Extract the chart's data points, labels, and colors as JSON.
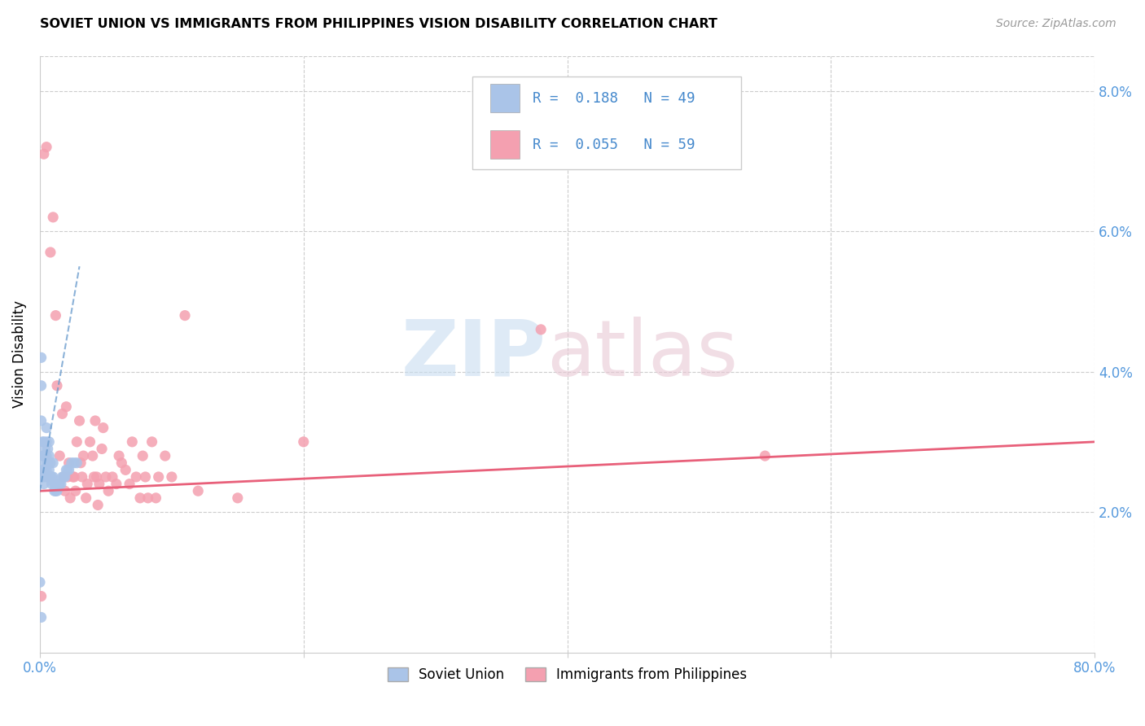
{
  "title": "SOVIET UNION VS IMMIGRANTS FROM PHILIPPINES VISION DISABILITY CORRELATION CHART",
  "source": "Source: ZipAtlas.com",
  "ylabel": "Vision Disability",
  "r_soviet": 0.188,
  "n_soviet": 49,
  "r_phil": 0.055,
  "n_phil": 59,
  "xlim": [
    0,
    0.8
  ],
  "ylim": [
    0,
    0.085
  ],
  "yticks": [
    0.0,
    0.02,
    0.04,
    0.06,
    0.08
  ],
  "xticks": [
    0.0,
    0.2,
    0.4,
    0.6,
    0.8
  ],
  "color_soviet": "#aac4e8",
  "color_phil": "#f4a0b0",
  "trendline_soviet_color": "#6699cc",
  "trendline_phil_color": "#e8607a",
  "soviet_x": [
    0.001,
    0.001,
    0.001,
    0.002,
    0.002,
    0.002,
    0.002,
    0.003,
    0.003,
    0.003,
    0.003,
    0.004,
    0.004,
    0.004,
    0.005,
    0.005,
    0.005,
    0.005,
    0.006,
    0.006,
    0.006,
    0.007,
    0.007,
    0.007,
    0.008,
    0.008,
    0.009,
    0.009,
    0.01,
    0.01,
    0.011,
    0.011,
    0.012,
    0.012,
    0.013,
    0.014,
    0.015,
    0.016,
    0.017,
    0.018,
    0.019,
    0.02,
    0.021,
    0.022,
    0.024,
    0.026,
    0.028,
    0.0,
    0.001
  ],
  "soviet_y": [
    0.042,
    0.038,
    0.033,
    0.03,
    0.028,
    0.026,
    0.025,
    0.03,
    0.028,
    0.026,
    0.024,
    0.029,
    0.027,
    0.025,
    0.032,
    0.03,
    0.028,
    0.026,
    0.029,
    0.027,
    0.025,
    0.03,
    0.028,
    0.026,
    0.027,
    0.025,
    0.025,
    0.024,
    0.027,
    0.025,
    0.024,
    0.023,
    0.024,
    0.023,
    0.023,
    0.024,
    0.024,
    0.024,
    0.025,
    0.025,
    0.025,
    0.026,
    0.026,
    0.026,
    0.027,
    0.027,
    0.027,
    0.01,
    0.005
  ],
  "phil_x": [
    0.003,
    0.005,
    0.008,
    0.01,
    0.012,
    0.013,
    0.015,
    0.017,
    0.018,
    0.019,
    0.02,
    0.021,
    0.022,
    0.023,
    0.025,
    0.026,
    0.027,
    0.028,
    0.03,
    0.031,
    0.032,
    0.033,
    0.035,
    0.036,
    0.038,
    0.04,
    0.041,
    0.042,
    0.043,
    0.044,
    0.045,
    0.047,
    0.048,
    0.05,
    0.052,
    0.055,
    0.058,
    0.06,
    0.062,
    0.065,
    0.068,
    0.07,
    0.073,
    0.076,
    0.078,
    0.08,
    0.082,
    0.085,
    0.088,
    0.09,
    0.095,
    0.1,
    0.11,
    0.12,
    0.15,
    0.2,
    0.38,
    0.55,
    0.001
  ],
  "phil_y": [
    0.071,
    0.072,
    0.057,
    0.062,
    0.048,
    0.038,
    0.028,
    0.034,
    0.025,
    0.023,
    0.035,
    0.025,
    0.027,
    0.022,
    0.025,
    0.025,
    0.023,
    0.03,
    0.033,
    0.027,
    0.025,
    0.028,
    0.022,
    0.024,
    0.03,
    0.028,
    0.025,
    0.033,
    0.025,
    0.021,
    0.024,
    0.029,
    0.032,
    0.025,
    0.023,
    0.025,
    0.024,
    0.028,
    0.027,
    0.026,
    0.024,
    0.03,
    0.025,
    0.022,
    0.028,
    0.025,
    0.022,
    0.03,
    0.022,
    0.025,
    0.028,
    0.025,
    0.048,
    0.023,
    0.022,
    0.03,
    0.046,
    0.028,
    0.008
  ],
  "soviet_trend_x": [
    0.0,
    0.03
  ],
  "soviet_trend_y": [
    0.023,
    0.055
  ],
  "phil_trend_x": [
    0.0,
    0.8
  ],
  "phil_trend_y": [
    0.023,
    0.03
  ]
}
